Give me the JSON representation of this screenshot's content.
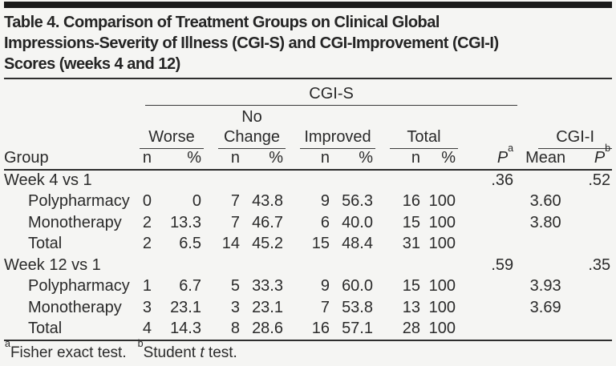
{
  "page": {
    "title_lines": [
      "Table 4. Comparison of Treatment Groups on Clinical Global",
      "Impressions-Severity of Illness (CGI-S) and CGI-Improvement (CGI-I)",
      "Scores (weeks 4 and 12)"
    ]
  },
  "table": {
    "spanners": {
      "cgis": "CGI-S",
      "cgii": "CGI-I"
    },
    "subspanners": {
      "worse": "Worse",
      "nochange_line1": "No",
      "nochange_line2": "Change",
      "improved": "Improved",
      "total": "Total"
    },
    "headers": {
      "group": "Group",
      "n": "n",
      "pct": "%",
      "p": "P",
      "sup_a": "a",
      "sup_b": "b",
      "mean": "Mean"
    },
    "rows": [
      {
        "label": "Week 4 vs 1",
        "values": [
          "",
          "",
          "",
          "",
          "",
          "",
          "",
          "",
          ".36",
          "",
          ".52"
        ]
      },
      {
        "label": "Polypharmacy",
        "values": [
          "0",
          "0",
          "7",
          "43.8",
          "9",
          "56.3",
          "16",
          "100",
          "",
          "3.60",
          ""
        ]
      },
      {
        "label": "Monotherapy",
        "values": [
          "2",
          "13.3",
          "7",
          "46.7",
          "6",
          "40.0",
          "15",
          "100",
          "",
          "3.80",
          ""
        ]
      },
      {
        "label": "Total",
        "values": [
          "2",
          "6.5",
          "14",
          "45.2",
          "15",
          "48.4",
          "31",
          "100",
          "",
          "",
          ""
        ]
      },
      {
        "label": "Week 12 vs 1",
        "values": [
          "",
          "",
          "",
          "",
          "",
          "",
          "",
          "",
          ".59",
          "",
          ".35"
        ]
      },
      {
        "label": "Polypharmacy",
        "values": [
          "1",
          "6.7",
          "5",
          "33.3",
          "9",
          "60.0",
          "15",
          "100",
          "",
          "3.93",
          ""
        ]
      },
      {
        "label": "Monotherapy",
        "values": [
          "3",
          "23.1",
          "3",
          "23.1",
          "7",
          "53.8",
          "13",
          "100",
          "",
          "3.69",
          ""
        ]
      },
      {
        "label": "Total",
        "values": [
          "4",
          "14.3",
          "8",
          "28.6",
          "16",
          "57.1",
          "28",
          "100",
          "",
          "",
          ""
        ]
      }
    ],
    "footnote": {
      "sup_a": "a",
      "text_a": "Fisher exact test.",
      "sup_b": "b",
      "text_b_pre": "Student ",
      "text_b_italic": "t",
      "text_b_post": " test."
    }
  },
  "colors": {
    "text": "#2a2a2a",
    "rule": "#2e2e2e",
    "top_bar": "#1a1a1a",
    "background": "#f5f5f3"
  }
}
